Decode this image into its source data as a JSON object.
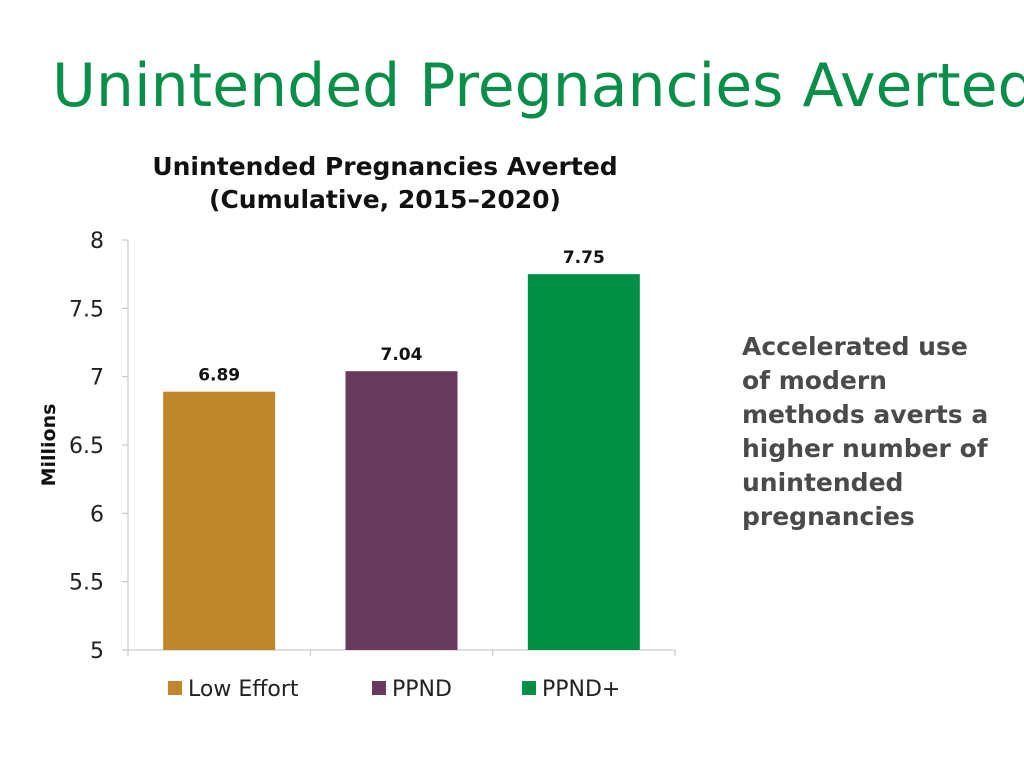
{
  "slide": {
    "title": "Unintended Pregnancies Averted",
    "side_note": "Accelerated use of modern methods averts a higher number of unintended pregnancies"
  },
  "colors": {
    "title_green": "#0a8f4a",
    "low_effort": "#c0862c",
    "ppnd": "#673a5c",
    "ppnd_plus": "#008f45"
  },
  "chart_data": {
    "type": "bar",
    "title_line1": "Unintended Pregnancies Averted",
    "title_line2": "(Cumulative, 2015–2020)",
    "ylabel": "Millions",
    "xlabel": "",
    "ylim": [
      5,
      8
    ],
    "yticks": [
      "5",
      "5.5",
      "6",
      "6.5",
      "7",
      "7.5",
      "8"
    ],
    "categories": [
      "Low Effort",
      "PPND",
      "PPND+"
    ],
    "values": [
      6.89,
      7.04,
      7.75
    ],
    "value_labels": [
      "6.89",
      "7.04",
      "7.75"
    ],
    "bar_colors": [
      "#c0862c",
      "#673a5c",
      "#008f45"
    ],
    "legend": [
      "Low Effort",
      "PPND",
      "PPND+"
    ],
    "legend_position": "bottom",
    "grid": false
  }
}
